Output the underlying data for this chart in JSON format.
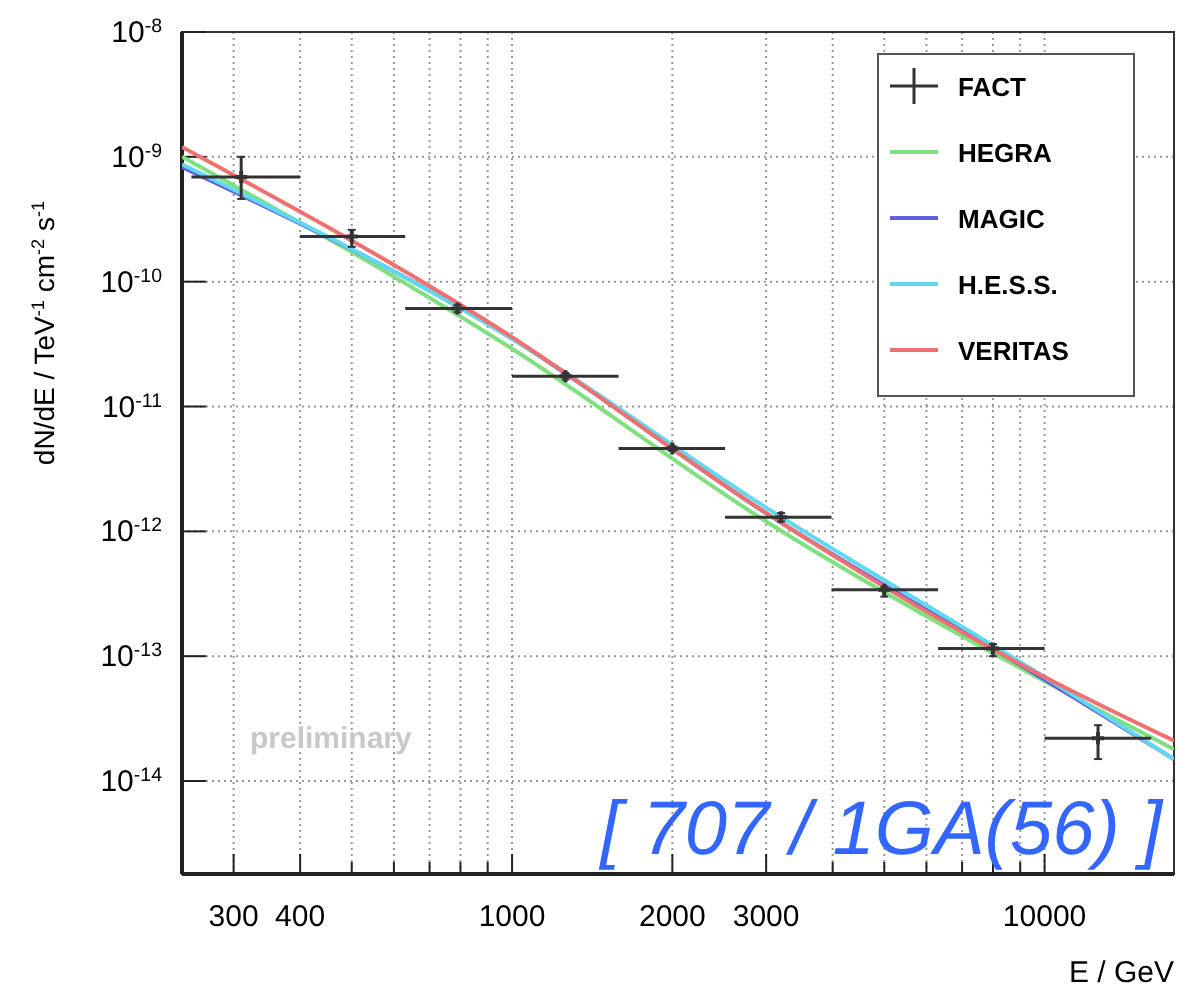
{
  "chart_data": {
    "type": "line",
    "xlabel": "E / GeV",
    "ylabel": "dN/dE / TeV$^{-1}$ cm$^{-2}$ s$^{-1}$",
    "log": "xy",
    "grid": true,
    "legend": "top right",
    "line_style": "solid",
    "marker": "none",
    "xlim": [
      240,
      17500
    ],
    "ylim": [
      1.8e-15,
      1e-08
    ],
    "xticks": [
      300,
      400,
      {
        "value": 500,
        "label": null
      },
      {
        "value": 600,
        "label": null
      },
      {
        "value": 700,
        "label": null
      },
      {
        "value": 800,
        "label": null
      },
      {
        "value": 900,
        "label": null
      },
      1000,
      2000,
      3000,
      {
        "value": 4000,
        "label": null
      },
      {
        "value": 5000,
        "label": null
      },
      {
        "value": 6000,
        "label": null
      },
      {
        "value": 7000,
        "label": null
      },
      {
        "value": 8000,
        "label": null
      },
      {
        "value": 9000,
        "label": null
      },
      10000
    ],
    "yticks": [
      {
        "value": 1e-08,
        "label": "10$^{-8}$"
      },
      {
        "value": 1e-09,
        "label": "10$^{-9}$"
      },
      {
        "value": 1e-10,
        "label": "10$^{-10}$"
      },
      {
        "value": 1e-11,
        "label": "10$^{-11}$"
      },
      {
        "value": 1e-12,
        "label": "10$^{-12}$"
      },
      {
        "value": 1e-13,
        "label": "10$^{-13}$"
      },
      {
        "value": 1e-14,
        "label": "10$^{-14}$"
      }
    ],
    "annotations": [
      "preliminary",
      "[ 707 / 1GA(56) ]"
    ],
    "series": [
      {
        "name": "FACT",
        "type": "scatter",
        "marker": "cross",
        "color": "#333333",
        "x": [
          310,
          500,
          790,
          1260,
          2000,
          3200,
          5000,
          8000,
          12600
        ],
        "values": [
          6.9e-10,
          2.3e-10,
          6.1e-11,
          1.75e-11,
          4.6e-12,
          1.3e-12,
          3.4e-13,
          1.15e-13,
          2.2e-14
        ],
        "errors": [
          [
            4.6e-10,
            1e-09
          ],
          [
            1.9e-10,
            2.6e-10
          ],
          [
            5.7e-11,
            6.5e-11
          ],
          [
            1.65e-11,
            1.85e-11
          ],
          [
            4.4e-12,
            4.8e-12
          ],
          [
            1.2e-12,
            1.4e-12
          ],
          [
            3e-13,
            3.6e-13
          ],
          [
            1e-13,
            1.25e-13
          ],
          [
            1.5e-14,
            2.8e-14
          ]
        ],
        "xerrors": [
          [
            250,
            400
          ],
          [
            400,
            630
          ],
          [
            630,
            1000
          ],
          [
            1000,
            1585
          ],
          [
            1585,
            2512
          ],
          [
            2512,
            3980
          ],
          [
            3980,
            6310
          ],
          [
            6310,
            10000
          ],
          [
            10000,
            15850
          ]
        ]
      },
      {
        "name": "HEGRA",
        "color": "#80e080",
        "x": [
          240,
          1000,
          3000,
          10000,
          17500
        ],
        "values": [
          1e-09,
          2.9e-11,
          1.2e-12,
          6.3e-14,
          1.8e-14
        ]
      },
      {
        "name": "MAGIC",
        "color": "#6060e0",
        "x": [
          240,
          1000,
          3000,
          10000,
          17500
        ],
        "values": [
          8.3e-10,
          3.5e-11,
          1.4e-12,
          6.5e-14,
          1.5e-14
        ]
      },
      {
        "name": "H.E.S.S.",
        "color": "#60d8f0",
        "x": [
          240,
          1000,
          3000,
          10000,
          17500
        ],
        "values": [
          8.7e-10,
          3.5e-11,
          1.55e-12,
          6.8e-14,
          1.5e-14
        ]
      },
      {
        "name": "VERITAS",
        "color": "#f07070",
        "x": [
          240,
          1000,
          3000,
          10000,
          17500
        ],
        "values": [
          1.2e-09,
          3.6e-11,
          1.4e-12,
          6.8e-14,
          2.1e-14
        ]
      }
    ]
  }
}
